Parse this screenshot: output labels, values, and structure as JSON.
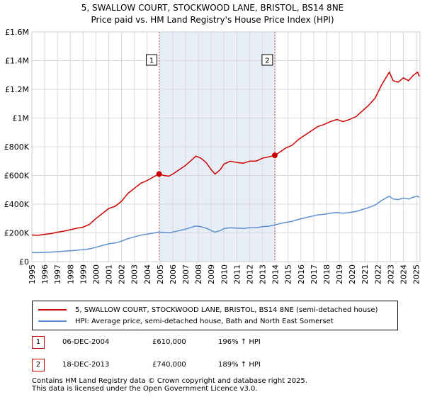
{
  "title": {
    "line1": "5, SWALLOW COURT, STOCKWOOD LANE, BRISTOL, BS14 8NE",
    "line2": "Price paid vs. HM Land Registry's House Price Index (HPI)"
  },
  "colors": {
    "property": "#cc0000",
    "hpi": "#5b8fd0",
    "shade": "#e8eef8",
    "grid": "#d8d8d8",
    "marker_border": "#cc0000"
  },
  "chart_data": {
    "type": "line",
    "xlim": [
      1995,
      2025.3
    ],
    "ylim": [
      0,
      1600000
    ],
    "y_ticks": [
      0,
      200000,
      400000,
      600000,
      800000,
      1000000,
      1200000,
      1400000,
      1600000
    ],
    "y_tick_labels": [
      "£0",
      "£200K",
      "£400K",
      "£600K",
      "£800K",
      "£1M",
      "£1.2M",
      "£1.4M",
      "£1.6M"
    ],
    "x_ticks": [
      1995,
      1996,
      1997,
      1998,
      1999,
      2000,
      2001,
      2002,
      2003,
      2004,
      2005,
      2006,
      2007,
      2008,
      2009,
      2010,
      2011,
      2012,
      2013,
      2014,
      2015,
      2016,
      2017,
      2018,
      2019,
      2020,
      2021,
      2022,
      2023,
      2024,
      2025
    ],
    "shaded_range": [
      2004.93,
      2013.96
    ],
    "series": [
      {
        "name": "5, SWALLOW COURT, STOCKWOOD LANE, BRISTOL, BS14 8NE (semi-detached house)",
        "color": "#cc0000",
        "points": [
          [
            1995.0,
            185000
          ],
          [
            1995.5,
            183000
          ],
          [
            1996.0,
            190000
          ],
          [
            1996.5,
            195000
          ],
          [
            1997.0,
            205000
          ],
          [
            1997.5,
            212000
          ],
          [
            1998.0,
            222000
          ],
          [
            1998.5,
            232000
          ],
          [
            1999.0,
            240000
          ],
          [
            1999.5,
            260000
          ],
          [
            2000.0,
            300000
          ],
          [
            2000.5,
            335000
          ],
          [
            2001.0,
            370000
          ],
          [
            2001.5,
            385000
          ],
          [
            2002.0,
            420000
          ],
          [
            2002.5,
            475000
          ],
          [
            2003.0,
            510000
          ],
          [
            2003.5,
            545000
          ],
          [
            2004.0,
            565000
          ],
          [
            2004.5,
            590000
          ],
          [
            2004.93,
            610000
          ],
          [
            2005.3,
            600000
          ],
          [
            2005.7,
            595000
          ],
          [
            2006.0,
            610000
          ],
          [
            2006.5,
            640000
          ],
          [
            2007.0,
            670000
          ],
          [
            2007.5,
            710000
          ],
          [
            2007.8,
            735000
          ],
          [
            2008.2,
            720000
          ],
          [
            2008.6,
            690000
          ],
          [
            2009.0,
            640000
          ],
          [
            2009.3,
            610000
          ],
          [
            2009.7,
            640000
          ],
          [
            2010.0,
            680000
          ],
          [
            2010.5,
            700000
          ],
          [
            2011.0,
            690000
          ],
          [
            2011.5,
            685000
          ],
          [
            2012.0,
            700000
          ],
          [
            2012.5,
            700000
          ],
          [
            2013.0,
            720000
          ],
          [
            2013.5,
            730000
          ],
          [
            2013.96,
            740000
          ],
          [
            2014.3,
            760000
          ],
          [
            2014.8,
            790000
          ],
          [
            2015.3,
            810000
          ],
          [
            2015.8,
            850000
          ],
          [
            2016.3,
            880000
          ],
          [
            2016.8,
            910000
          ],
          [
            2017.3,
            940000
          ],
          [
            2017.8,
            955000
          ],
          [
            2018.3,
            975000
          ],
          [
            2018.8,
            990000
          ],
          [
            2019.3,
            975000
          ],
          [
            2019.8,
            990000
          ],
          [
            2020.3,
            1010000
          ],
          [
            2020.8,
            1050000
          ],
          [
            2021.3,
            1090000
          ],
          [
            2021.8,
            1140000
          ],
          [
            2022.3,
            1230000
          ],
          [
            2022.7,
            1290000
          ],
          [
            2022.9,
            1320000
          ],
          [
            2023.2,
            1260000
          ],
          [
            2023.6,
            1250000
          ],
          [
            2024.0,
            1280000
          ],
          [
            2024.4,
            1260000
          ],
          [
            2024.8,
            1300000
          ],
          [
            2025.1,
            1320000
          ],
          [
            2025.25,
            1290000
          ]
        ]
      },
      {
        "name": "HPI: Average price, semi-detached house, Bath and North East Somerset",
        "color": "#5b8fd0",
        "points": [
          [
            1995.0,
            63000
          ],
          [
            1995.5,
            62000
          ],
          [
            1996.0,
            64000
          ],
          [
            1996.5,
            66000
          ],
          [
            1997.0,
            69000
          ],
          [
            1997.5,
            72000
          ],
          [
            1998.0,
            76000
          ],
          [
            1998.5,
            79000
          ],
          [
            1999.0,
            83000
          ],
          [
            1999.5,
            89000
          ],
          [
            2000.0,
            100000
          ],
          [
            2000.5,
            112000
          ],
          [
            2001.0,
            124000
          ],
          [
            2001.5,
            130000
          ],
          [
            2002.0,
            142000
          ],
          [
            2002.5,
            160000
          ],
          [
            2003.0,
            172000
          ],
          [
            2003.5,
            184000
          ],
          [
            2004.0,
            191000
          ],
          [
            2004.5,
            199000
          ],
          [
            2004.93,
            206000
          ],
          [
            2005.3,
            203000
          ],
          [
            2005.7,
            201000
          ],
          [
            2006.0,
            206000
          ],
          [
            2006.5,
            216000
          ],
          [
            2007.0,
            226000
          ],
          [
            2007.5,
            240000
          ],
          [
            2007.8,
            248000
          ],
          [
            2008.2,
            243000
          ],
          [
            2008.6,
            233000
          ],
          [
            2009.0,
            216000
          ],
          [
            2009.3,
            206000
          ],
          [
            2009.7,
            216000
          ],
          [
            2010.0,
            230000
          ],
          [
            2010.5,
            236000
          ],
          [
            2011.0,
            233000
          ],
          [
            2011.5,
            231000
          ],
          [
            2012.0,
            236000
          ],
          [
            2012.5,
            236000
          ],
          [
            2013.0,
            243000
          ],
          [
            2013.5,
            247000
          ],
          [
            2013.96,
            256000
          ],
          [
            2014.3,
            263000
          ],
          [
            2014.8,
            273000
          ],
          [
            2015.3,
            280000
          ],
          [
            2015.8,
            294000
          ],
          [
            2016.3,
            304000
          ],
          [
            2016.8,
            315000
          ],
          [
            2017.3,
            325000
          ],
          [
            2017.8,
            330000
          ],
          [
            2018.3,
            337000
          ],
          [
            2018.8,
            342000
          ],
          [
            2019.3,
            337000
          ],
          [
            2019.8,
            342000
          ],
          [
            2020.3,
            349000
          ],
          [
            2020.8,
            363000
          ],
          [
            2021.3,
            377000
          ],
          [
            2021.8,
            394000
          ],
          [
            2022.3,
            425000
          ],
          [
            2022.7,
            446000
          ],
          [
            2022.9,
            456000
          ],
          [
            2023.2,
            436000
          ],
          [
            2023.6,
            432000
          ],
          [
            2024.0,
            443000
          ],
          [
            2024.4,
            436000
          ],
          [
            2024.8,
            450000
          ],
          [
            2025.1,
            456000
          ],
          [
            2025.25,
            446000
          ]
        ]
      }
    ],
    "sales": [
      {
        "num": "1",
        "x": 2004.93,
        "price": 610000
      },
      {
        "num": "2",
        "x": 2013.96,
        "price": 740000
      }
    ]
  },
  "legend": {
    "property_label": "5, SWALLOW COURT, STOCKWOOD LANE, BRISTOL, BS14 8NE (semi-detached house)",
    "hpi_label": "HPI: Average price, semi-detached house, Bath and North East Somerset"
  },
  "sales_table": [
    {
      "num": "1",
      "date": "06-DEC-2004",
      "price": "£610,000",
      "hpi": "196% ↑ HPI"
    },
    {
      "num": "2",
      "date": "18-DEC-2013",
      "price": "£740,000",
      "hpi": "189% ↑ HPI"
    }
  ],
  "footer": {
    "line1": "Contains HM Land Registry data © Crown copyright and database right 2025.",
    "line2": "This data is licensed under the Open Government Licence v3.0."
  }
}
